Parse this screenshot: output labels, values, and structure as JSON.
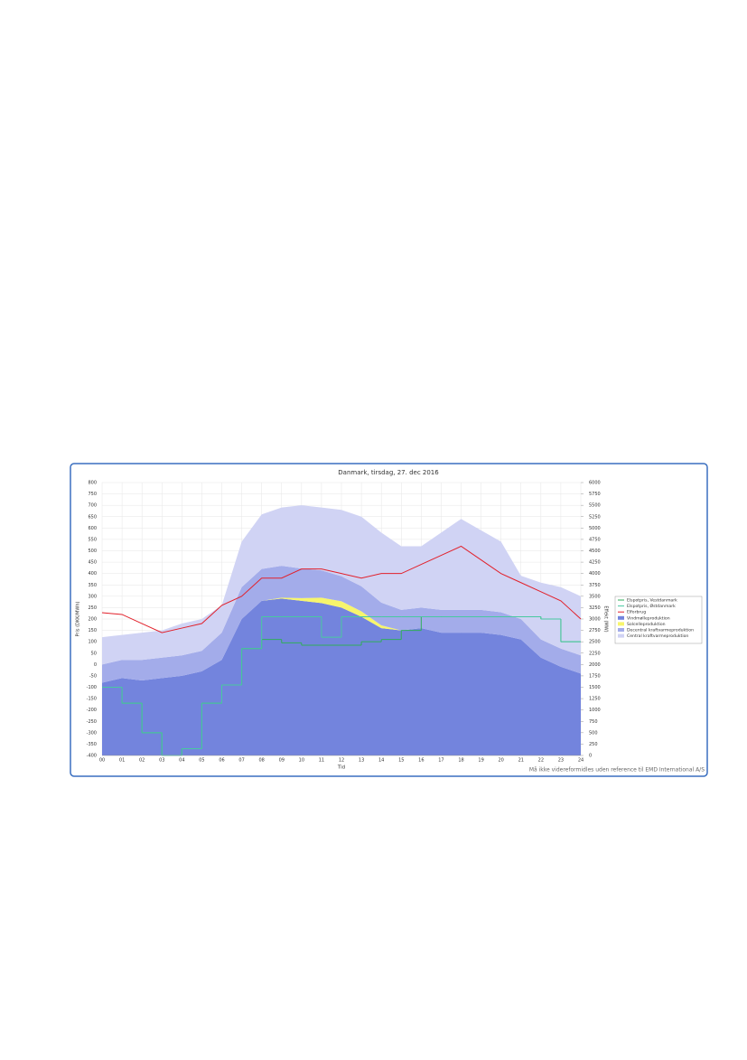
{
  "chart_data": {
    "type": "stacked-area-step",
    "title": "Danmark, tirsdag, 27. dec 2016",
    "x_label": "Tid",
    "y_label": "Pris (DKK/MWh)",
    "y2_label": "Effekt (MW)",
    "footnote": "Må ikke videreformidles uden reference til EMD International A/S",
    "x": [
      0,
      1,
      2,
      3,
      4,
      5,
      6,
      7,
      8,
      9,
      10,
      11,
      12,
      13,
      14,
      15,
      16,
      17,
      18,
      19,
      20,
      21,
      22,
      23,
      24
    ],
    "xlim": [
      0,
      24
    ],
    "xticks": [
      {
        "value": 0,
        "label": "00"
      },
      {
        "value": 1,
        "label": "01"
      },
      {
        "value": 2,
        "label": "02"
      },
      {
        "value": 3,
        "label": "03"
      },
      {
        "value": 4,
        "label": "04"
      },
      {
        "value": 5,
        "label": "05"
      },
      {
        "value": 6,
        "label": "06"
      },
      {
        "value": 7,
        "label": "07"
      },
      {
        "value": 8,
        "label": "08"
      },
      {
        "value": 9,
        "label": "09"
      },
      {
        "value": 10,
        "label": "10"
      },
      {
        "value": 11,
        "label": "11"
      },
      {
        "value": 12,
        "label": "12"
      },
      {
        "value": 13,
        "label": "13"
      },
      {
        "value": 14,
        "label": "14"
      },
      {
        "value": 15,
        "label": "15"
      },
      {
        "value": 16,
        "label": "16"
      },
      {
        "value": 17,
        "label": "17"
      },
      {
        "value": 18,
        "label": "18"
      },
      {
        "value": 19,
        "label": "19"
      },
      {
        "value": 20,
        "label": "20"
      },
      {
        "value": 21,
        "label": "21"
      },
      {
        "value": 22,
        "label": "22"
      },
      {
        "value": 23,
        "label": "23"
      },
      {
        "value": 24,
        "label": "24"
      }
    ],
    "ylim": [
      -400,
      800
    ],
    "yticks": [
      -400,
      -350,
      -300,
      -250,
      -200,
      -150,
      -100,
      -50,
      0,
      50,
      100,
      150,
      200,
      250,
      300,
      350,
      400,
      450,
      500,
      550,
      600,
      650,
      700,
      750,
      800
    ],
    "y2lim": [
      0,
      6000
    ],
    "y2ticks": [
      0,
      250,
      500,
      750,
      1000,
      1250,
      1500,
      1750,
      2000,
      2250,
      2500,
      2750,
      3000,
      3250,
      3500,
      3750,
      4000,
      4250,
      4500,
      4750,
      5000,
      5250,
      5500,
      5750,
      6000
    ],
    "grid": true,
    "legend": "right",
    "series": [
      {
        "name": "Elspotpris, Vestdanmark",
        "kind": "step",
        "color": "#2fae5a",
        "values": [
          -100,
          -170,
          -300,
          -400,
          -370,
          -170,
          -90,
          70,
          110,
          95,
          85,
          85,
          85,
          100,
          110,
          150,
          210,
          210,
          210,
          210,
          210,
          210,
          200,
          100,
          100
        ]
      },
      {
        "name": "Elspotpris, Østdanmark",
        "kind": "step",
        "color": "#48c9a0",
        "values": [
          -100,
          -170,
          -300,
          -400,
          -370,
          -170,
          -90,
          70,
          210,
          210,
          210,
          120,
          210,
          210,
          210,
          210,
          210,
          210,
          210,
          210,
          210,
          210,
          200,
          100,
          100
        ]
      },
      {
        "name": "Elforbrug",
        "kind": "line",
        "axis": "y2",
        "color": "#e2202a",
        "values": [
          3140,
          3100,
          2900,
          2700,
          2800,
          2900,
          3300,
          3500,
          3900,
          3900,
          4100,
          4100,
          4000,
          3900,
          4000,
          4000,
          4200,
          4400,
          4600,
          4300,
          4000,
          3800,
          3600,
          3400,
          3000
        ]
      },
      {
        "name": "Vindmølleproduktion",
        "kind": "area",
        "axis": "y2",
        "color": "#7384dd",
        "values": [
          1600,
          1700,
          1650,
          1700,
          1750,
          1850,
          2100,
          3000,
          3400,
          3450,
          3400,
          3350,
          3250,
          3050,
          2800,
          2750,
          2800,
          2700,
          2700,
          2700,
          2650,
          2550,
          2150,
          1950,
          1800
        ]
      },
      {
        "name": "Solcelleproduktion",
        "kind": "area",
        "axis": "y2",
        "color": "#f7f56c",
        "values": [
          0,
          0,
          0,
          0,
          0,
          0,
          0,
          0,
          0,
          20,
          60,
          120,
          140,
          120,
          60,
          0,
          0,
          0,
          0,
          0,
          0,
          0,
          0,
          0,
          0
        ]
      },
      {
        "name": "Decentral kraftvarmeproduktion",
        "kind": "area",
        "axis": "y2",
        "color": "#a3acea",
        "values": [
          400,
          400,
          450,
          450,
          450,
          450,
          600,
          700,
          700,
          700,
          650,
          600,
          550,
          550,
          500,
          450,
          450,
          500,
          500,
          500,
          500,
          450,
          400,
          400,
          400
        ]
      },
      {
        "name": "Central kraftvarmeproduktion",
        "kind": "area",
        "axis": "y2",
        "color": "#d0d3f4",
        "values": [
          600,
          550,
          600,
          600,
          700,
          700,
          600,
          1000,
          1200,
          1280,
          1390,
          1380,
          1460,
          1530,
          1540,
          1400,
          1350,
          1700,
          2000,
          1750,
          1550,
          950,
          1250,
          1350,
          1300
        ]
      }
    ]
  }
}
